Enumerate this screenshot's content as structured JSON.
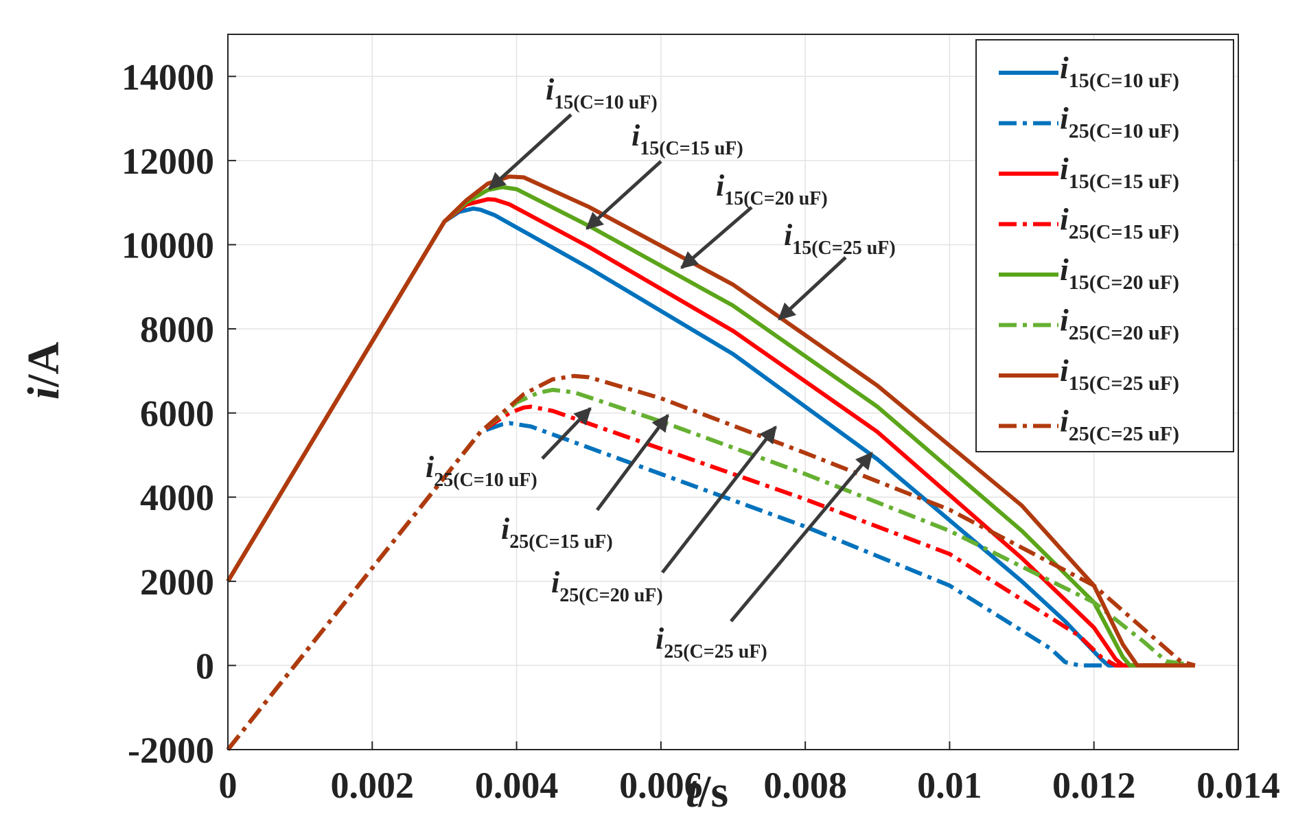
{
  "chart_data": {
    "type": "line",
    "title": "",
    "xlabel": {
      "italic": "t",
      "rest": "/s"
    },
    "ylabel": {
      "italic": "i",
      "rest": "/A"
    },
    "xlim": [
      0,
      0.014
    ],
    "ylim": [
      -2000,
      15000
    ],
    "grid": true,
    "legend_position": "top-right",
    "xticks": [
      0,
      0.002,
      0.004,
      0.006,
      0.008,
      0.01,
      0.012,
      0.014
    ],
    "xtick_labels": [
      "0",
      "0.002",
      "0.004",
      "0.006",
      "0.008",
      "0.01",
      "0.012",
      "0.014"
    ],
    "yticks": [
      -2000,
      0,
      2000,
      4000,
      6000,
      8000,
      10000,
      12000,
      14000
    ],
    "ytick_labels": [
      "-2000",
      "0",
      "2000",
      "4000",
      "6000",
      "8000",
      "10000",
      "12000",
      "14000"
    ],
    "series": [
      {
        "name": "i15(C=10 uF)",
        "label_main": "i",
        "label_sub": "15(C=10 uF)",
        "color": "#0072BD",
        "dash": "solid",
        "x": [
          0,
          0.003,
          0.0032,
          0.0034,
          0.0035,
          0.0037,
          0.005,
          0.007,
          0.009,
          0.011,
          0.0116,
          0.0121,
          0.0122,
          0.0134
        ],
        "y": [
          2000,
          10550,
          10780,
          10860,
          10830,
          10700,
          9450,
          7400,
          4900,
          2000,
          1050,
          150,
          0,
          0
        ]
      },
      {
        "name": "i25(C=10 uF)",
        "label_main": "i",
        "label_sub": "25(C=10 uF)",
        "color": "#0072BD",
        "dash": "dashdot",
        "x": [
          0,
          0.0035,
          0.0038,
          0.0039,
          0.0042,
          0.006,
          0.008,
          0.01,
          0.0114,
          0.0116,
          0.0118,
          0.0134
        ],
        "y": [
          -2000,
          5550,
          5730,
          5760,
          5680,
          4550,
          3300,
          1900,
          400,
          80,
          0,
          0
        ]
      },
      {
        "name": "i15(C=15 uF)",
        "label_main": "i",
        "label_sub": "15(C=15 uF)",
        "color": "#FF0000",
        "dash": "solid",
        "x": [
          0,
          0.003,
          0.0033,
          0.0036,
          0.0037,
          0.0039,
          0.005,
          0.007,
          0.009,
          0.011,
          0.012,
          0.0123,
          0.0124,
          0.0134
        ],
        "y": [
          2000,
          10550,
          10950,
          11080,
          11070,
          10960,
          9950,
          7950,
          5550,
          2550,
          900,
          150,
          0,
          0
        ]
      },
      {
        "name": "i25(C=15 uF)",
        "label_main": "i",
        "label_sub": "25(C=15 uF)",
        "color": "#FF0000",
        "dash": "dashdot",
        "x": [
          0,
          0.0035,
          0.0039,
          0.0041,
          0.0042,
          0.0045,
          0.006,
          0.008,
          0.01,
          0.0118,
          0.0121,
          0.0123,
          0.0134
        ],
        "y": [
          -2000,
          5550,
          6000,
          6130,
          6150,
          6050,
          5150,
          3950,
          2650,
          700,
          200,
          0,
          0
        ]
      },
      {
        "name": "i15(C=20 uF)",
        "label_main": "i",
        "label_sub": "15(C=20 uF)",
        "color": "#5BA51A",
        "dash": "solid",
        "x": [
          0,
          0.003,
          0.0033,
          0.0036,
          0.0038,
          0.004,
          0.005,
          0.007,
          0.009,
          0.011,
          0.012,
          0.0124,
          0.0125,
          0.0134
        ],
        "y": [
          2000,
          10550,
          11000,
          11300,
          11370,
          11320,
          10450,
          8550,
          6150,
          3200,
          1500,
          200,
          0,
          0
        ]
      },
      {
        "name": "i25(C=20 uF)",
        "label_main": "i",
        "label_sub": "25(C=20 uF)",
        "color": "#66B032",
        "dash": "dashdot",
        "x": [
          0,
          0.0035,
          0.004,
          0.0043,
          0.0045,
          0.0048,
          0.006,
          0.008,
          0.01,
          0.012,
          0.0127,
          0.013,
          0.0134
        ],
        "y": [
          -2000,
          5550,
          6250,
          6480,
          6550,
          6490,
          5800,
          4550,
          3200,
          1500,
          550,
          100,
          0
        ]
      },
      {
        "name": "i15(C=25 uF)",
        "label_main": "i",
        "label_sub": "15(C=25 uF)",
        "color": "#B03A0E",
        "dash": "solid",
        "x": [
          0,
          0.003,
          0.0033,
          0.0036,
          0.0039,
          0.0041,
          0.005,
          0.007,
          0.009,
          0.011,
          0.012,
          0.0124,
          0.0126,
          0.0134
        ],
        "y": [
          2000,
          10550,
          11050,
          11450,
          11620,
          11600,
          10900,
          9050,
          6650,
          3800,
          1900,
          500,
          0,
          0
        ]
      },
      {
        "name": "i25(C=25 uF)",
        "label_main": "i",
        "label_sub": "25(C=25 uF)",
        "color": "#B03A0E",
        "dash": "dashdot",
        "x": [
          0,
          0.0035,
          0.0041,
          0.0045,
          0.0048,
          0.005,
          0.006,
          0.008,
          0.01,
          0.012,
          0.0128,
          0.0132,
          0.0134
        ],
        "y": [
          -2000,
          5550,
          6450,
          6800,
          6880,
          6850,
          6350,
          5050,
          3700,
          1900,
          700,
          100,
          0
        ]
      }
    ],
    "annotations": [
      {
        "main": "i",
        "sub": "15(C=10 uF)"
      },
      {
        "main": "i",
        "sub": "15(C=15 uF)"
      },
      {
        "main": "i",
        "sub": "15(C=20 uF)"
      },
      {
        "main": "i",
        "sub": "15(C=25 uF)"
      },
      {
        "main": "i",
        "sub": "25(C=10 uF)"
      },
      {
        "main": "i",
        "sub": "25(C=15 uF)"
      },
      {
        "main": "i",
        "sub": "25(C=20 uF)"
      },
      {
        "main": "i",
        "sub": "25(C=25 uF)"
      }
    ]
  }
}
